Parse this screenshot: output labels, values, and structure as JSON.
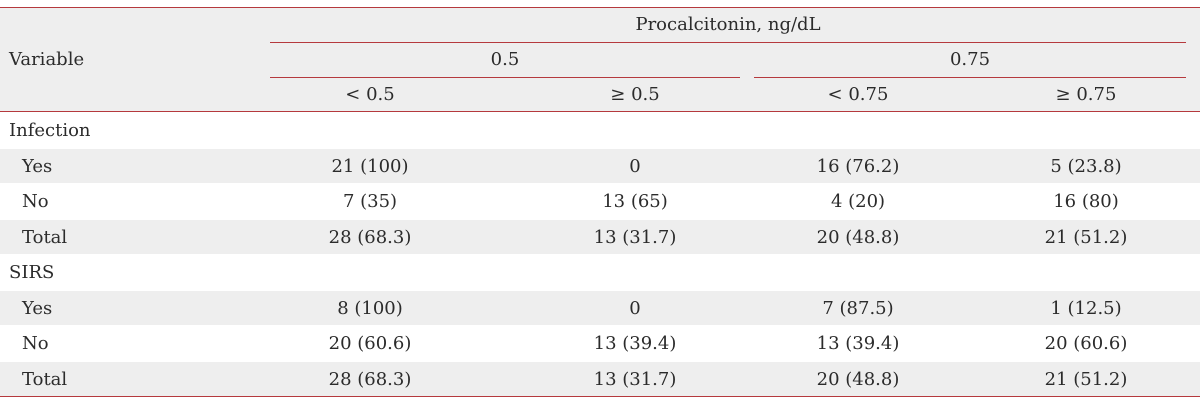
{
  "table": {
    "header": {
      "variable": "Variable",
      "group": "Procalcitonin, ng/dL",
      "cutoffs": [
        "0.5",
        "0.75"
      ],
      "columns": [
        "< 0.5",
        "≥ 0.5",
        "< 0.75",
        "≥ 0.75"
      ]
    },
    "sections": [
      {
        "title": "Infection",
        "rows": [
          {
            "label": "Yes",
            "values": [
              "21 (100)",
              "0",
              "16 (76.2)",
              "5 (23.8)"
            ]
          },
          {
            "label": "No",
            "values": [
              "7 (35)",
              "13 (65)",
              "4 (20)",
              "16 (80)"
            ]
          },
          {
            "label": "Total",
            "values": [
              "28 (68.3)",
              "13 (31.7)",
              "20 (48.8)",
              "21 (51.2)"
            ]
          }
        ]
      },
      {
        "title": "SIRS",
        "rows": [
          {
            "label": "Yes",
            "values": [
              "8 (100)",
              "0",
              "7 (87.5)",
              "1 (12.5)"
            ]
          },
          {
            "label": "No",
            "values": [
              "20 (60.6)",
              "13 (39.4)",
              "13 (39.4)",
              "20 (60.6)"
            ]
          },
          {
            "label": "Total",
            "values": [
              "28 (68.3)",
              "13 (31.7)",
              "20 (48.8)",
              "21 (51.2)"
            ]
          }
        ]
      }
    ]
  }
}
